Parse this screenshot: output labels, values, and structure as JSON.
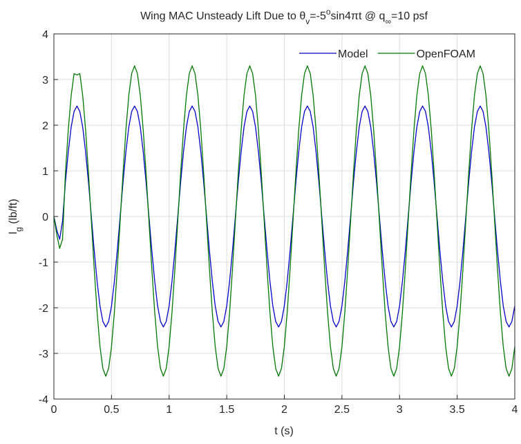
{
  "chart_data": {
    "type": "line",
    "title_parts": [
      {
        "text": "Wing MAC Unsteady Lift Due to  "
      },
      {
        "text": "θ"
      },
      {
        "text": "v",
        "shift": "sub"
      },
      {
        "text": "=-5"
      },
      {
        "text": "o",
        "shift": "super"
      },
      {
        "text": "sin4"
      },
      {
        "text": "π"
      },
      {
        "text": "t @ q"
      },
      {
        "text": "∞",
        "shift": "sub"
      },
      {
        "text": "=10 psf"
      }
    ],
    "xlabel": "t (s)",
    "ylabel_parts": [
      {
        "text": "l"
      },
      {
        "text": "g",
        "shift": "sub"
      },
      {
        "text": " (lb/ft)"
      }
    ],
    "xlim": [
      0,
      4
    ],
    "ylim": [
      -4,
      4
    ],
    "xticks": [
      0,
      0.5,
      1,
      1.5,
      2,
      2.5,
      3,
      3.5,
      4
    ],
    "yticks": [
      -4,
      -3,
      -2,
      -1,
      0,
      1,
      2,
      3,
      4
    ],
    "grid": true,
    "legend": "top-right",
    "x": [
      0,
      0.025,
      0.05,
      0.075,
      0.1,
      0.125,
      0.15,
      0.175,
      0.2,
      0.225,
      0.25,
      0.275,
      0.3,
      0.325,
      0.35,
      0.375,
      0.4,
      0.425,
      0.45,
      0.475,
      0.5,
      0.525,
      0.55,
      0.575,
      0.6,
      0.625,
      0.65,
      0.675,
      0.7,
      0.725,
      0.75,
      0.775,
      0.8,
      0.825,
      0.85,
      0.875,
      0.9,
      0.925,
      0.95,
      0.975,
      1,
      1.025,
      1.05,
      1.075,
      1.1,
      1.125,
      1.15,
      1.175,
      1.2,
      1.225,
      1.25,
      1.275,
      1.3,
      1.325,
      1.35,
      1.375,
      1.4,
      1.425,
      1.45,
      1.475,
      1.5,
      1.525,
      1.55,
      1.575,
      1.6,
      1.625,
      1.65,
      1.675,
      1.7,
      1.725,
      1.75,
      1.775,
      1.8,
      1.825,
      1.85,
      1.875,
      1.9,
      1.925,
      1.95,
      1.975,
      2,
      2.025,
      2.05,
      2.075,
      2.1,
      2.125,
      2.15,
      2.175,
      2.2,
      2.225,
      2.25,
      2.275,
      2.3,
      2.325,
      2.35,
      2.375,
      2.4,
      2.425,
      2.45,
      2.475,
      2.5,
      2.525,
      2.55,
      2.575,
      2.6,
      2.625,
      2.65,
      2.675,
      2.7,
      2.725,
      2.75,
      2.775,
      2.8,
      2.825,
      2.85,
      2.875,
      2.9,
      2.925,
      2.95,
      2.975,
      3,
      3.025,
      3.05,
      3.075,
      3.1,
      3.125,
      3.15,
      3.175,
      3.2,
      3.225,
      3.25,
      3.275,
      3.3,
      3.325,
      3.35,
      3.375,
      3.4,
      3.425,
      3.45,
      3.475,
      3.5,
      3.525,
      3.55,
      3.575,
      3.6,
      3.625,
      3.65,
      3.675,
      3.7,
      3.725,
      3.75,
      3.775,
      3.8,
      3.825,
      3.85,
      3.875,
      3.9,
      3.925,
      3.95,
      3.975,
      4
    ],
    "series": [
      {
        "name": "Model",
        "color": "#0000c8",
        "values": [
          0,
          -0.3,
          -0.5,
          -0.1,
          0.75,
          1.42,
          1.96,
          2.3,
          2.42,
          2.3,
          1.96,
          1.42,
          0.75,
          0,
          -0.75,
          -1.42,
          -1.96,
          -2.3,
          -2.42,
          -2.3,
          -1.96,
          -1.42,
          -0.75,
          0,
          0.75,
          1.42,
          1.96,
          2.3,
          2.42,
          2.3,
          1.96,
          1.42,
          0.75,
          0,
          -0.75,
          -1.42,
          -1.96,
          -2.3,
          -2.42,
          -2.3,
          -1.96,
          -1.42,
          -0.75,
          0,
          0.75,
          1.42,
          1.96,
          2.3,
          2.42,
          2.3,
          1.96,
          1.42,
          0.75,
          0,
          -0.75,
          -1.42,
          -1.96,
          -2.3,
          -2.42,
          -2.3,
          -1.96,
          -1.42,
          -0.75,
          0,
          0.75,
          1.42,
          1.96,
          2.3,
          2.42,
          2.3,
          1.96,
          1.42,
          0.75,
          0,
          -0.75,
          -1.42,
          -1.96,
          -2.3,
          -2.42,
          -2.3,
          -1.96,
          -1.42,
          -0.75,
          0,
          0.75,
          1.42,
          1.96,
          2.3,
          2.42,
          2.3,
          1.96,
          1.42,
          0.75,
          0,
          -0.75,
          -1.42,
          -1.96,
          -2.3,
          -2.42,
          -2.3,
          -1.96,
          -1.42,
          -0.75,
          0,
          0.75,
          1.42,
          1.96,
          2.3,
          2.42,
          2.3,
          1.96,
          1.42,
          0.75,
          0,
          -0.75,
          -1.42,
          -1.96,
          -2.3,
          -2.42,
          -2.3,
          -1.96,
          -1.42,
          -0.75,
          0,
          0.75,
          1.42,
          1.96,
          2.3,
          2.42,
          2.3,
          1.96,
          1.42,
          0.75,
          0,
          -0.75,
          -1.42,
          -1.96,
          -2.3,
          -2.42,
          -2.3,
          -1.96,
          -1.42,
          -0.75,
          0,
          0.75,
          1.42,
          1.96,
          2.3,
          2.42,
          2.3,
          1.96,
          1.42,
          0.75,
          0,
          -0.75,
          -1.42,
          -1.96,
          -2.3,
          -2.42,
          -2.3,
          -1.96
        ]
      },
      {
        "name": "OpenFOAM",
        "color": "#007800",
        "values": [
          0,
          -0.4,
          -0.7,
          -0.5,
          0.95,
          1.9,
          2.65,
          3.13,
          3.1,
          3.13,
          2.65,
          1.9,
          0.95,
          -0.1,
          -1.15,
          -2.1,
          -2.85,
          -3.33,
          -3.5,
          -3.33,
          -2.85,
          -2.1,
          -1.15,
          -0.1,
          0.95,
          1.9,
          2.65,
          3.13,
          3.3,
          3.13,
          2.65,
          1.9,
          0.95,
          -0.1,
          -1.15,
          -2.1,
          -2.85,
          -3.33,
          -3.5,
          -3.33,
          -2.85,
          -2.1,
          -1.15,
          -0.1,
          0.95,
          1.9,
          2.65,
          3.13,
          3.3,
          3.13,
          2.65,
          1.9,
          0.95,
          -0.1,
          -1.15,
          -2.1,
          -2.85,
          -3.33,
          -3.5,
          -3.33,
          -2.85,
          -2.1,
          -1.15,
          -0.1,
          0.95,
          1.9,
          2.65,
          3.13,
          3.3,
          3.13,
          2.65,
          1.9,
          0.95,
          -0.1,
          -1.15,
          -2.1,
          -2.85,
          -3.33,
          -3.5,
          -3.33,
          -2.85,
          -2.1,
          -1.15,
          -0.1,
          0.95,
          1.9,
          2.65,
          3.13,
          3.3,
          3.13,
          2.65,
          1.9,
          0.95,
          -0.1,
          -1.15,
          -2.1,
          -2.85,
          -3.33,
          -3.5,
          -3.33,
          -2.85,
          -2.1,
          -1.15,
          -0.1,
          0.95,
          1.9,
          2.65,
          3.13,
          3.3,
          3.13,
          2.65,
          1.9,
          0.95,
          -0.1,
          -1.15,
          -2.1,
          -2.85,
          -3.33,
          -3.5,
          -3.33,
          -2.85,
          -2.1,
          -1.15,
          -0.1,
          0.95,
          1.9,
          2.65,
          3.13,
          3.3,
          3.13,
          2.65,
          1.9,
          0.95,
          -0.1,
          -1.15,
          -2.1,
          -2.85,
          -3.33,
          -3.5,
          -3.33,
          -2.85,
          -2.1,
          -1.15,
          -0.1,
          0.95,
          1.9,
          2.65,
          3.13,
          3.3,
          3.13,
          2.65,
          1.9,
          0.95,
          -0.1,
          -1.15,
          -2.1,
          -2.85,
          -3.33,
          -3.5,
          -3.33,
          -2.85
        ]
      }
    ]
  }
}
